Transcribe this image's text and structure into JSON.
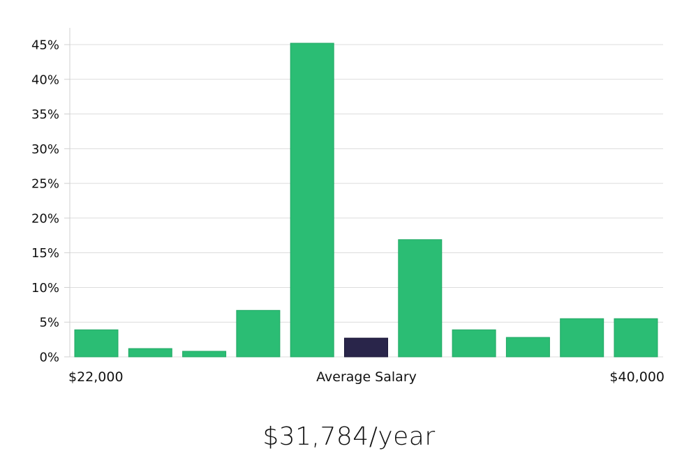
{
  "chart_data": {
    "type": "bar",
    "values": [
      3.9,
      1.2,
      0.8,
      6.7,
      45.2,
      2.7,
      16.9,
      3.9,
      2.8,
      5.5,
      5.5
    ],
    "highlight_index": 5,
    "ylim": [
      0,
      47
    ],
    "y_ticks": [
      0,
      5,
      10,
      15,
      20,
      25,
      30,
      35,
      40,
      45
    ],
    "y_tick_labels": [
      "0%",
      "5%",
      "10%",
      "15%",
      "20%",
      "25%",
      "30%",
      "35%",
      "40%",
      "45%"
    ],
    "x_labels": {
      "min": "$22,000",
      "middle": "Average Salary",
      "max": "$40,000"
    },
    "grid": true,
    "legend": "none",
    "colors": {
      "bar": "#2bbd74",
      "highlight": "#29254a",
      "grid": "#dcdcdc",
      "axis": "#d0d0d0"
    }
  },
  "caption": "$31,784/year"
}
